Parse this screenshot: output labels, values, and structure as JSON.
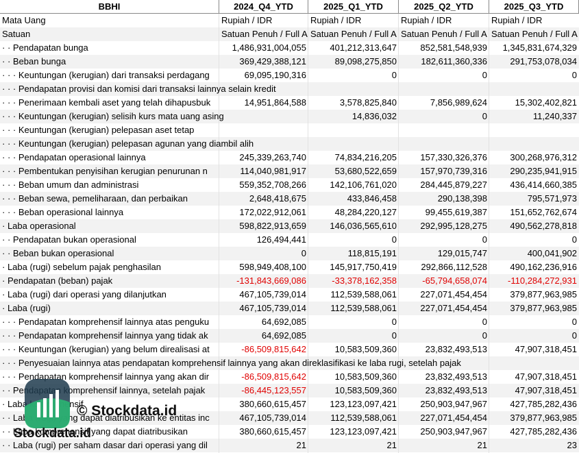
{
  "table": {
    "header": [
      "BBHI",
      "2024_Q4_YTD",
      "2025_Q1_YTD",
      "2025_Q2_YTD",
      "2025_Q3_YTD"
    ],
    "rows": [
      [
        "Mata Uang",
        "Rupiah / IDR",
        "Rupiah / IDR",
        "Rupiah / IDR",
        "Rupiah / IDR"
      ],
      [
        "Satuan",
        "Satuan Penuh / Full A",
        "Satuan Penuh / Full A",
        "Satuan Penuh / Full A",
        "Satuan Penuh / Full A"
      ],
      [
        "· · Pendapatan bunga",
        "1,486,931,004,055",
        "401,212,313,647",
        "852,581,548,939",
        "1,345,831,674,329"
      ],
      [
        "· · Beban bunga",
        "369,429,388,121",
        "89,098,275,850",
        "182,611,360,336",
        "291,753,078,034"
      ],
      [
        "· · · Keuntungan (kerugian) dari transaksi perdagang",
        "69,095,190,316",
        "0",
        "0",
        "0"
      ],
      [
        "· · · Pendapatan provisi dan komisi dari transaksi lainnya selain kredit",
        null,
        null,
        null,
        null
      ],
      [
        "· · · Penerimaan kembali aset yang telah dihapusbuk",
        "14,951,864,588",
        "3,578,825,840",
        "7,856,989,624",
        "15,302,402,821"
      ],
      [
        "· · · Keuntungan (kerugian) selisih kurs mata uang asing",
        null,
        "14,836,032",
        "0",
        "11,240,337"
      ],
      [
        "· · · Keuntungan (kerugian) pelepasan aset tetap",
        null,
        null,
        null,
        null
      ],
      [
        "· · · Keuntungan (kerugian) pelepasan agunan yang diambil alih",
        null,
        null,
        null,
        null
      ],
      [
        "· · · Pendapatan operasional lainnya",
        "245,339,263,740",
        "74,834,216,205",
        "157,330,326,376",
        "300,268,976,312"
      ],
      [
        "· · · Pembentukan penyisihan kerugian penurunan n",
        "114,040,981,917",
        "53,680,522,659",
        "157,970,739,316",
        "290,235,941,915"
      ],
      [
        "· · · Beban umum dan administrasi",
        "559,352,708,266",
        "142,106,761,020",
        "284,445,879,227",
        "436,414,660,385"
      ],
      [
        "· · · Beban sewa, pemeliharaan, dan perbaikan",
        "2,648,418,675",
        "433,846,458",
        "290,138,398",
        "795,571,973"
      ],
      [
        "· · · Beban operasional lainnya",
        "172,022,912,061",
        "48,284,220,127",
        "99,455,619,387",
        "151,652,762,674"
      ],
      [
        "· Laba operasional",
        "598,822,913,659",
        "146,036,565,610",
        "292,995,128,275",
        "490,562,278,818"
      ],
      [
        "· · Pendapatan bukan operasional",
        "126,494,441",
        "0",
        "0",
        "0"
      ],
      [
        "· · Beban bukan operasional",
        "0",
        "118,815,191",
        "129,015,747",
        "400,041,902"
      ],
      [
        "· Laba (rugi) sebelum pajak penghasilan",
        "598,949,408,100",
        "145,917,750,419",
        "292,866,112,528",
        "490,162,236,916"
      ],
      [
        "· Pendapatan (beban) pajak",
        "-131,843,669,086",
        "-33,378,162,358",
        "-65,794,658,074",
        "-110,284,272,931"
      ],
      [
        "· Laba (rugi) dari operasi yang dilanjutkan",
        "467,105,739,014",
        "112,539,588,061",
        "227,071,454,454",
        "379,877,963,985"
      ],
      [
        "· Laba (rugi)",
        "467,105,739,014",
        "112,539,588,061",
        "227,071,454,454",
        "379,877,963,985"
      ],
      [
        "· · · Pendapatan komprehensif lainnya atas penguku",
        "64,692,085",
        "0",
        "0",
        "0"
      ],
      [
        "· · · Pendapatan komprehensif lainnya yang tidak ak",
        "64,692,085",
        "0",
        "0",
        "0"
      ],
      [
        "· · · Keuntungan (kerugian) yang belum direalisasi at",
        "-86,509,815,642",
        "10,583,509,360",
        "23,832,493,513",
        "47,907,318,451"
      ],
      [
        "· · · Penyesuaian lainnya atas pendapatan komprehensif lainnya yang akan direklasifikasi ke laba rugi, setelah pajak",
        null,
        null,
        null,
        null
      ],
      [
        "· · · Pendapatan komprehensif lainnya yang akan dir",
        "-86,509,815,642",
        "10,583,509,360",
        "23,832,493,513",
        "47,907,318,451"
      ],
      [
        "· · Pendapatan komprehensif lainnya, setelah pajak",
        "-86,445,123,557",
        "10,583,509,360",
        "23,832,493,513",
        "47,907,318,451"
      ],
      [
        "· Laba komprehensif",
        "380,660,615,457",
        "123,123,097,421",
        "250,903,947,967",
        "427,785,282,436"
      ],
      [
        "· · Laba (rugi) yang dapat diatribusikan ke entitas inc",
        "467,105,739,014",
        "112,539,588,061",
        "227,071,454,454",
        "379,877,963,985"
      ],
      [
        "· · Laba komprehensif yang dapat diatribusikan",
        "380,660,615,457",
        "123,123,097,421",
        "250,903,947,967",
        "427,785,282,436"
      ],
      [
        "· · Laba (rugi) per saham dasar dari operasi yang dil",
        "21",
        "21",
        "21",
        "23"
      ]
    ]
  },
  "watermark": {
    "brand": "© Stockdata.id",
    "logo_text": "Stockdata.id"
  }
}
